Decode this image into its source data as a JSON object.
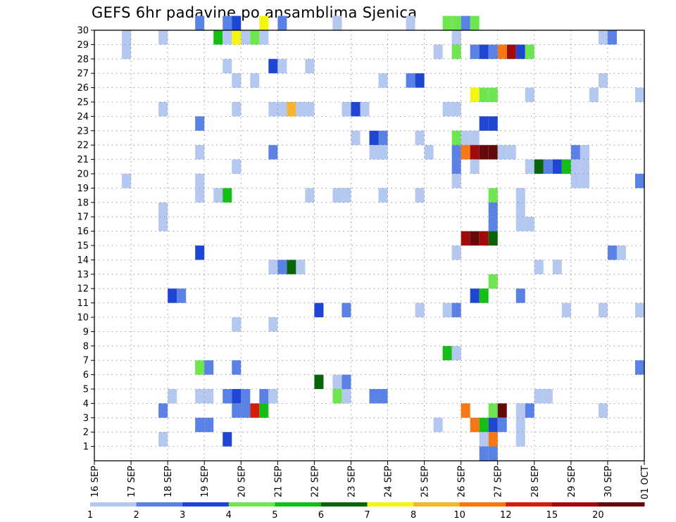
{
  "chart_data": {
    "type": "heatmap",
    "title": "GEFS 6hr padavine po ansamblima Sjenica",
    "xlabel": "",
    "ylabel": "",
    "x_start": "2020-09-16T00:00",
    "x_end": "2020-10-01T00:00",
    "x_tick_labels": [
      "16 SEP",
      "17 SEP",
      "18 SEP",
      "19 SEP",
      "20 SEP",
      "21 SEP",
      "22 SEP",
      "23 SEP",
      "24 SEP",
      "25 SEP",
      "26 SEP",
      "27 SEP",
      "28 SEP",
      "29 SEP",
      "30 SEP",
      "01 OCT"
    ],
    "y_tick_labels": [
      "1",
      "2",
      "3",
      "4",
      "5",
      "6",
      "7",
      "8",
      "9",
      "10",
      "11",
      "12",
      "13",
      "14",
      "15",
      "16",
      "17",
      "18",
      "19",
      "20",
      "21",
      "22",
      "23",
      "24",
      "25",
      "26",
      "27",
      "28",
      "29",
      "30"
    ],
    "colorbar": {
      "labels": [
        "1",
        "2",
        "3",
        "4",
        "5",
        "6",
        "7",
        "8",
        "10",
        "12",
        "15",
        "20"
      ],
      "colors": [
        "#b4c8f0",
        "#5a82e6",
        "#1e46d2",
        "#6ee650",
        "#14be14",
        "#0a640a",
        "#f5f514",
        "#f5b432",
        "#f57814",
        "#d21e0a",
        "#a00a0a",
        "#640a0a"
      ]
    },
    "grid": "dotted",
    "cells": [
      {
        "member": 30,
        "time": "2020-09-18T18:00",
        "mm": 2
      },
      {
        "member": 30,
        "time": "2020-09-19T12:00",
        "mm": 2
      },
      {
        "member": 30,
        "time": "2020-09-19T18:00",
        "mm": 3
      },
      {
        "member": 30,
        "time": "2020-09-20T12:00",
        "mm": 7
      },
      {
        "member": 30,
        "time": "2020-09-21T00:00",
        "mm": 2
      },
      {
        "member": 30,
        "time": "2020-09-22T12:00",
        "mm": 1
      },
      {
        "member": 30,
        "time": "2020-09-24T12:00",
        "mm": 1
      },
      {
        "member": 30,
        "time": "2020-09-25T12:00",
        "mm": 4
      },
      {
        "member": 30,
        "time": "2020-09-25T18:00",
        "mm": 4
      },
      {
        "member": 30,
        "time": "2020-09-26T00:00",
        "mm": 2
      },
      {
        "member": 30,
        "time": "2020-09-26T06:00",
        "mm": 4
      },
      {
        "member": 29,
        "time": "2020-09-16T18:00",
        "mm": 1
      },
      {
        "member": 29,
        "time": "2020-09-17T18:00",
        "mm": 1
      },
      {
        "member": 29,
        "time": "2020-09-19T06:00",
        "mm": 5
      },
      {
        "member": 29,
        "time": "2020-09-19T12:00",
        "mm": 1
      },
      {
        "member": 29,
        "time": "2020-09-19T18:00",
        "mm": 7
      },
      {
        "member": 29,
        "time": "2020-09-20T00:00",
        "mm": 1
      },
      {
        "member": 29,
        "time": "2020-09-20T06:00",
        "mm": 4
      },
      {
        "member": 29,
        "time": "2020-09-20T12:00",
        "mm": 1
      },
      {
        "member": 29,
        "time": "2020-09-25T18:00",
        "mm": 1
      },
      {
        "member": 29,
        "time": "2020-09-29T18:00",
        "mm": 1
      },
      {
        "member": 29,
        "time": "2020-09-30T00:00",
        "mm": 2
      },
      {
        "member": 28,
        "time": "2020-09-16T18:00",
        "mm": 1
      },
      {
        "member": 28,
        "time": "2020-09-25T06:00",
        "mm": 1
      },
      {
        "member": 28,
        "time": "2020-09-25T18:00",
        "mm": 4
      },
      {
        "member": 28,
        "time": "2020-09-26T06:00",
        "mm": 2
      },
      {
        "member": 28,
        "time": "2020-09-26T12:00",
        "mm": 3
      },
      {
        "member": 28,
        "time": "2020-09-26T18:00",
        "mm": 2
      },
      {
        "member": 28,
        "time": "2020-09-27T00:00",
        "mm": 10
      },
      {
        "member": 28,
        "time": "2020-09-27T06:00",
        "mm": 15
      },
      {
        "member": 28,
        "time": "2020-09-27T12:00",
        "mm": 3
      },
      {
        "member": 28,
        "time": "2020-09-27T18:00",
        "mm": 4
      },
      {
        "member": 27,
        "time": "2020-09-19T12:00",
        "mm": 1
      },
      {
        "member": 27,
        "time": "2020-09-20T18:00",
        "mm": 3
      },
      {
        "member": 27,
        "time": "2020-09-21T00:00",
        "mm": 1
      },
      {
        "member": 27,
        "time": "2020-09-21T18:00",
        "mm": 1
      },
      {
        "member": 26,
        "time": "2020-09-19T18:00",
        "mm": 1
      },
      {
        "member": 26,
        "time": "2020-09-20T06:00",
        "mm": 1
      },
      {
        "member": 26,
        "time": "2020-09-23T18:00",
        "mm": 1
      },
      {
        "member": 26,
        "time": "2020-09-24T12:00",
        "mm": 2
      },
      {
        "member": 26,
        "time": "2020-09-24T18:00",
        "mm": 3
      },
      {
        "member": 26,
        "time": "2020-09-29T18:00",
        "mm": 1
      },
      {
        "member": 25,
        "time": "2020-09-26T06:00",
        "mm": 7
      },
      {
        "member": 25,
        "time": "2020-09-26T12:00",
        "mm": 4
      },
      {
        "member": 25,
        "time": "2020-09-26T18:00",
        "mm": 4
      },
      {
        "member": 25,
        "time": "2020-09-27T18:00",
        "mm": 1
      },
      {
        "member": 25,
        "time": "2020-09-29T12:00",
        "mm": 1
      },
      {
        "member": 25,
        "time": "2020-09-30T18:00",
        "mm": 1
      },
      {
        "member": 24,
        "time": "2020-09-17T18:00",
        "mm": 1
      },
      {
        "member": 24,
        "time": "2020-09-19T18:00",
        "mm": 1
      },
      {
        "member": 24,
        "time": "2020-09-20T18:00",
        "mm": 1
      },
      {
        "member": 24,
        "time": "2020-09-21T00:00",
        "mm": 1
      },
      {
        "member": 24,
        "time": "2020-09-21T06:00",
        "mm": 8
      },
      {
        "member": 24,
        "time": "2020-09-21T12:00",
        "mm": 1
      },
      {
        "member": 24,
        "time": "2020-09-21T18:00",
        "mm": 1
      },
      {
        "member": 24,
        "time": "2020-09-22T18:00",
        "mm": 1
      },
      {
        "member": 24,
        "time": "2020-09-23T00:00",
        "mm": 3
      },
      {
        "member": 24,
        "time": "2020-09-23T06:00",
        "mm": 1
      },
      {
        "member": 24,
        "time": "2020-09-25T12:00",
        "mm": 1
      },
      {
        "member": 24,
        "time": "2020-09-25T18:00",
        "mm": 1
      },
      {
        "member": 23,
        "time": "2020-09-18T18:00",
        "mm": 2
      },
      {
        "member": 23,
        "time": "2020-09-26T12:00",
        "mm": 3
      },
      {
        "member": 23,
        "time": "2020-09-26T18:00",
        "mm": 3
      },
      {
        "member": 22,
        "time": "2020-09-23T00:00",
        "mm": 1
      },
      {
        "member": 22,
        "time": "2020-09-23T12:00",
        "mm": 3
      },
      {
        "member": 22,
        "time": "2020-09-23T18:00",
        "mm": 2
      },
      {
        "member": 22,
        "time": "2020-09-24T18:00",
        "mm": 1
      },
      {
        "member": 22,
        "time": "2020-09-25T18:00",
        "mm": 4
      },
      {
        "member": 22,
        "time": "2020-09-26T00:00",
        "mm": 1
      },
      {
        "member": 22,
        "time": "2020-09-26T06:00",
        "mm": 1
      },
      {
        "member": 21,
        "time": "2020-09-18T18:00",
        "mm": 1
      },
      {
        "member": 21,
        "time": "2020-09-20T18:00",
        "mm": 2
      },
      {
        "member": 21,
        "time": "2020-09-23T12:00",
        "mm": 1
      },
      {
        "member": 21,
        "time": "2020-09-23T18:00",
        "mm": 1
      },
      {
        "member": 21,
        "time": "2020-09-25T00:00",
        "mm": 1
      },
      {
        "member": 21,
        "time": "2020-09-25T18:00",
        "mm": 2
      },
      {
        "member": 21,
        "time": "2020-09-26T00:00",
        "mm": 10
      },
      {
        "member": 21,
        "time": "2020-09-26T06:00",
        "mm": 15
      },
      {
        "member": 21,
        "time": "2020-09-26T12:00",
        "mm": 20
      },
      {
        "member": 21,
        "time": "2020-09-26T18:00",
        "mm": 20
      },
      {
        "member": 21,
        "time": "2020-09-27T00:00",
        "mm": 1
      },
      {
        "member": 21,
        "time": "2020-09-27T06:00",
        "mm": 1
      },
      {
        "member": 21,
        "time": "2020-09-29T00:00",
        "mm": 2
      },
      {
        "member": 21,
        "time": "2020-09-29T06:00",
        "mm": 1
      },
      {
        "member": 20,
        "time": "2020-09-19T18:00",
        "mm": 1
      },
      {
        "member": 20,
        "time": "2020-09-25T18:00",
        "mm": 2
      },
      {
        "member": 20,
        "time": "2020-09-26T06:00",
        "mm": 1
      },
      {
        "member": 20,
        "time": "2020-09-27T18:00",
        "mm": 1
      },
      {
        "member": 20,
        "time": "2020-09-28T00:00",
        "mm": 6
      },
      {
        "member": 20,
        "time": "2020-09-28T06:00",
        "mm": 2
      },
      {
        "member": 20,
        "time": "2020-09-28T12:00",
        "mm": 3
      },
      {
        "member": 20,
        "time": "2020-09-28T18:00",
        "mm": 5
      },
      {
        "member": 20,
        "time": "2020-09-29T00:00",
        "mm": 1
      },
      {
        "member": 20,
        "time": "2020-09-29T06:00",
        "mm": 1
      },
      {
        "member": 19,
        "time": "2020-09-16T18:00",
        "mm": 1
      },
      {
        "member": 19,
        "time": "2020-09-18T18:00",
        "mm": 1
      },
      {
        "member": 19,
        "time": "2020-09-25T18:00",
        "mm": 1
      },
      {
        "member": 19,
        "time": "2020-09-29T00:00",
        "mm": 1
      },
      {
        "member": 19,
        "time": "2020-09-29T06:00",
        "mm": 1
      },
      {
        "member": 19,
        "time": "2020-09-30T18:00",
        "mm": 2
      },
      {
        "member": 18,
        "time": "2020-09-18T18:00",
        "mm": 1
      },
      {
        "member": 18,
        "time": "2020-09-19T06:00",
        "mm": 1
      },
      {
        "member": 18,
        "time": "2020-09-19T12:00",
        "mm": 5
      },
      {
        "member": 18,
        "time": "2020-09-21T18:00",
        "mm": 1
      },
      {
        "member": 18,
        "time": "2020-09-22T12:00",
        "mm": 1
      },
      {
        "member": 18,
        "time": "2020-09-22T18:00",
        "mm": 1
      },
      {
        "member": 18,
        "time": "2020-09-23T18:00",
        "mm": 1
      },
      {
        "member": 18,
        "time": "2020-09-24T18:00",
        "mm": 1
      },
      {
        "member": 18,
        "time": "2020-09-26T18:00",
        "mm": 4
      },
      {
        "member": 18,
        "time": "2020-09-27T12:00",
        "mm": 1
      },
      {
        "member": 17,
        "time": "2020-09-26T18:00",
        "mm": 2
      },
      {
        "member": 17,
        "time": "2020-09-27T12:00",
        "mm": 1
      },
      {
        "member": 17,
        "time": "2020-09-17T18:00",
        "mm": 1
      },
      {
        "member": 16,
        "time": "2020-09-17T18:00",
        "mm": 1
      },
      {
        "member": 16,
        "time": "2020-09-26T18:00",
        "mm": 2
      },
      {
        "member": 16,
        "time": "2020-09-27T12:00",
        "mm": 1
      },
      {
        "member": 16,
        "time": "2020-09-27T18:00",
        "mm": 1
      },
      {
        "member": 15,
        "time": "2020-09-26T00:00",
        "mm": 15
      },
      {
        "member": 15,
        "time": "2020-09-26T06:00",
        "mm": 20
      },
      {
        "member": 15,
        "time": "2020-09-26T12:00",
        "mm": 15
      },
      {
        "member": 15,
        "time": "2020-09-26T18:00",
        "mm": 6
      },
      {
        "member": 14,
        "time": "2020-09-18T18:00",
        "mm": 3
      },
      {
        "member": 14,
        "time": "2020-09-25T18:00",
        "mm": 1
      },
      {
        "member": 14,
        "time": "2020-09-30T00:00",
        "mm": 2
      },
      {
        "member": 14,
        "time": "2020-09-30T06:00",
        "mm": 1
      },
      {
        "member": 13,
        "time": "2020-09-20T18:00",
        "mm": 1
      },
      {
        "member": 13,
        "time": "2020-09-21T00:00",
        "mm": 2
      },
      {
        "member": 13,
        "time": "2020-09-21T06:00",
        "mm": 6
      },
      {
        "member": 13,
        "time": "2020-09-21T12:00",
        "mm": 1
      },
      {
        "member": 13,
        "time": "2020-09-28T00:00",
        "mm": 1
      },
      {
        "member": 13,
        "time": "2020-09-28T12:00",
        "mm": 1
      },
      {
        "member": 12,
        "time": "2020-09-26T18:00",
        "mm": 4
      },
      {
        "member": 11,
        "time": "2020-09-18T00:00",
        "mm": 3
      },
      {
        "member": 11,
        "time": "2020-09-18T06:00",
        "mm": 2
      },
      {
        "member": 11,
        "time": "2020-09-26T06:00",
        "mm": 3
      },
      {
        "member": 11,
        "time": "2020-09-26T12:00",
        "mm": 5
      },
      {
        "member": 11,
        "time": "2020-09-27T12:00",
        "mm": 2
      },
      {
        "member": 10,
        "time": "2020-09-22T00:00",
        "mm": 3
      },
      {
        "member": 10,
        "time": "2020-09-22T18:00",
        "mm": 2
      },
      {
        "member": 10,
        "time": "2020-09-24T18:00",
        "mm": 1
      },
      {
        "member": 10,
        "time": "2020-09-25T12:00",
        "mm": 1
      },
      {
        "member": 10,
        "time": "2020-09-25T18:00",
        "mm": 2
      },
      {
        "member": 10,
        "time": "2020-09-28T18:00",
        "mm": 1
      },
      {
        "member": 10,
        "time": "2020-09-29T18:00",
        "mm": 1
      },
      {
        "member": 10,
        "time": "2020-09-30T18:00",
        "mm": 1
      },
      {
        "member": 9,
        "time": "2020-09-19T18:00",
        "mm": 1
      },
      {
        "member": 9,
        "time": "2020-09-20T18:00",
        "mm": 1
      },
      {
        "member": 7,
        "time": "2020-09-25T12:00",
        "mm": 5
      },
      {
        "member": 7,
        "time": "2020-09-25T18:00",
        "mm": 1
      },
      {
        "member": 6,
        "time": "2020-09-18T18:00",
        "mm": 4
      },
      {
        "member": 6,
        "time": "2020-09-19T00:00",
        "mm": 2
      },
      {
        "member": 6,
        "time": "2020-09-19T18:00",
        "mm": 2
      },
      {
        "member": 6,
        "time": "2020-09-30T18:00",
        "mm": 2
      },
      {
        "member": 5,
        "time": "2020-09-22T00:00",
        "mm": 6
      },
      {
        "member": 5,
        "time": "2020-09-22T12:00",
        "mm": 1
      },
      {
        "member": 5,
        "time": "2020-09-22T18:00",
        "mm": 2
      },
      {
        "member": 4,
        "time": "2020-09-18T00:00",
        "mm": 1
      },
      {
        "member": 4,
        "time": "2020-09-18T18:00",
        "mm": 1
      },
      {
        "member": 4,
        "time": "2020-09-19T00:00",
        "mm": 1
      },
      {
        "member": 4,
        "time": "2020-09-19T12:00",
        "mm": 2
      },
      {
        "member": 4,
        "time": "2020-09-19T18:00",
        "mm": 3
      },
      {
        "member": 4,
        "time": "2020-09-20T00:00",
        "mm": 2
      },
      {
        "member": 4,
        "time": "2020-09-20T12:00",
        "mm": 2
      },
      {
        "member": 4,
        "time": "2020-09-20T18:00",
        "mm": 1
      },
      {
        "member": 4,
        "time": "2020-09-22T12:00",
        "mm": 4
      },
      {
        "member": 4,
        "time": "2020-09-22T18:00",
        "mm": 1
      },
      {
        "member": 4,
        "time": "2020-09-23T12:00",
        "mm": 2
      },
      {
        "member": 4,
        "time": "2020-09-23T18:00",
        "mm": 2
      },
      {
        "member": 4,
        "time": "2020-09-28T00:00",
        "mm": 1
      },
      {
        "member": 4,
        "time": "2020-09-28T06:00",
        "mm": 1
      },
      {
        "member": 3,
        "time": "2020-09-17T18:00",
        "mm": 2
      },
      {
        "member": 3,
        "time": "2020-09-19T18:00",
        "mm": 2
      },
      {
        "member": 3,
        "time": "2020-09-20T00:00",
        "mm": 2
      },
      {
        "member": 3,
        "time": "2020-09-20T06:00",
        "mm": 12
      },
      {
        "member": 3,
        "time": "2020-09-20T12:00",
        "mm": 5
      },
      {
        "member": 3,
        "time": "2020-09-26T00:00",
        "mm": 10
      },
      {
        "member": 3,
        "time": "2020-09-26T18:00",
        "mm": 4
      },
      {
        "member": 3,
        "time": "2020-09-27T00:00",
        "mm": 20
      },
      {
        "member": 3,
        "time": "2020-09-27T12:00",
        "mm": 1
      },
      {
        "member": 3,
        "time": "2020-09-27T18:00",
        "mm": 2
      },
      {
        "member": 3,
        "time": "2020-09-29T18:00",
        "mm": 1
      },
      {
        "member": 2,
        "time": "2020-09-18T18:00",
        "mm": 2
      },
      {
        "member": 2,
        "time": "2020-09-19T00:00",
        "mm": 2
      },
      {
        "member": 2,
        "time": "2020-09-25T06:00",
        "mm": 1
      },
      {
        "member": 2,
        "time": "2020-09-26T06:00",
        "mm": 10
      },
      {
        "member": 2,
        "time": "2020-09-26T12:00",
        "mm": 5
      },
      {
        "member": 2,
        "time": "2020-09-26T18:00",
        "mm": 3
      },
      {
        "member": 2,
        "time": "2020-09-27T00:00",
        "mm": 2
      },
      {
        "member": 2,
        "time": "2020-09-27T12:00",
        "mm": 1
      },
      {
        "member": 1,
        "time": "2020-09-17T18:00",
        "mm": 1
      },
      {
        "member": 1,
        "time": "2020-09-19T12:00",
        "mm": 3
      },
      {
        "member": 1,
        "time": "2020-09-26T12:00",
        "mm": 1
      },
      {
        "member": 1,
        "time": "2020-09-26T18:00",
        "mm": 10
      },
      {
        "member": 1,
        "time": "2020-09-27T12:00",
        "mm": 1
      },
      {
        "member": 0,
        "time": "2020-09-26T12:00",
        "mm": 2
      },
      {
        "member": 0,
        "time": "2020-09-26T18:00",
        "mm": 2
      }
    ]
  }
}
